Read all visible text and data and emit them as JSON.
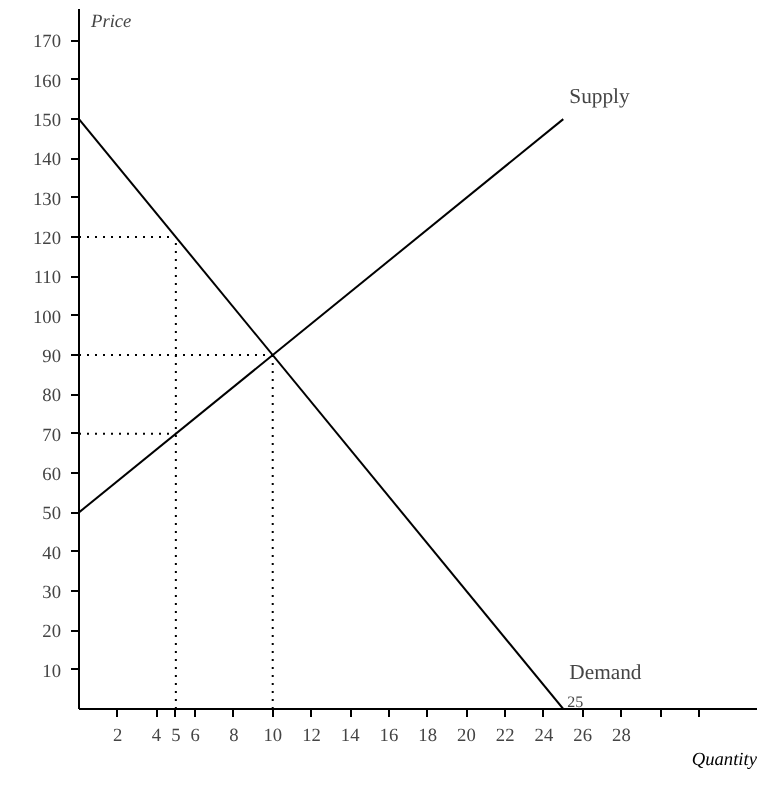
{
  "chart_data": {
    "type": "line",
    "xlabel": "Quantity",
    "ylabel": "Price",
    "xlim": [
      0,
      35
    ],
    "ylim": [
      0,
      178
    ],
    "xticks": [
      2,
      4,
      {
        "value": 5,
        "label": "5"
      },
      6,
      8,
      10,
      12,
      14,
      16,
      18,
      20,
      22,
      24,
      26,
      28,
      {
        "value": 30,
        "label": null
      },
      {
        "value": 32,
        "label": null
      }
    ],
    "yticks": [
      10,
      20,
      30,
      40,
      50,
      60,
      70,
      80,
      90,
      100,
      110,
      120,
      130,
      140,
      150,
      160,
      170
    ],
    "grid": false,
    "legend": false,
    "marker": "none",
    "series": [
      {
        "name": "Supply",
        "color": "#000000",
        "x": [
          0,
          25
        ],
        "values": [
          50,
          150
        ],
        "line_style": "solid"
      },
      {
        "name": "Demand",
        "color": "#000000",
        "x": [
          0,
          25
        ],
        "values": [
          150,
          0
        ],
        "line_style": "solid"
      },
      {
        "color": "#000000",
        "x": [
          0,
          5
        ],
        "values": [
          120,
          120
        ],
        "line_style": "dotted"
      },
      {
        "color": "#000000",
        "x": [
          0,
          10
        ],
        "values": [
          90,
          90
        ],
        "line_style": "dotted"
      },
      {
        "color": "#000000",
        "x": [
          0,
          5
        ],
        "values": [
          70,
          70
        ],
        "line_style": "dotted"
      },
      {
        "color": "#000000",
        "x": [
          5,
          5
        ],
        "values": [
          0,
          120
        ],
        "line_style": "dotted"
      },
      {
        "color": "#000000",
        "x": [
          10,
          10
        ],
        "values": [
          0,
          90
        ],
        "line_style": "dotted"
      }
    ],
    "annotations": [
      {
        "text": "25",
        "x": 25,
        "y": 0
      }
    ]
  }
}
